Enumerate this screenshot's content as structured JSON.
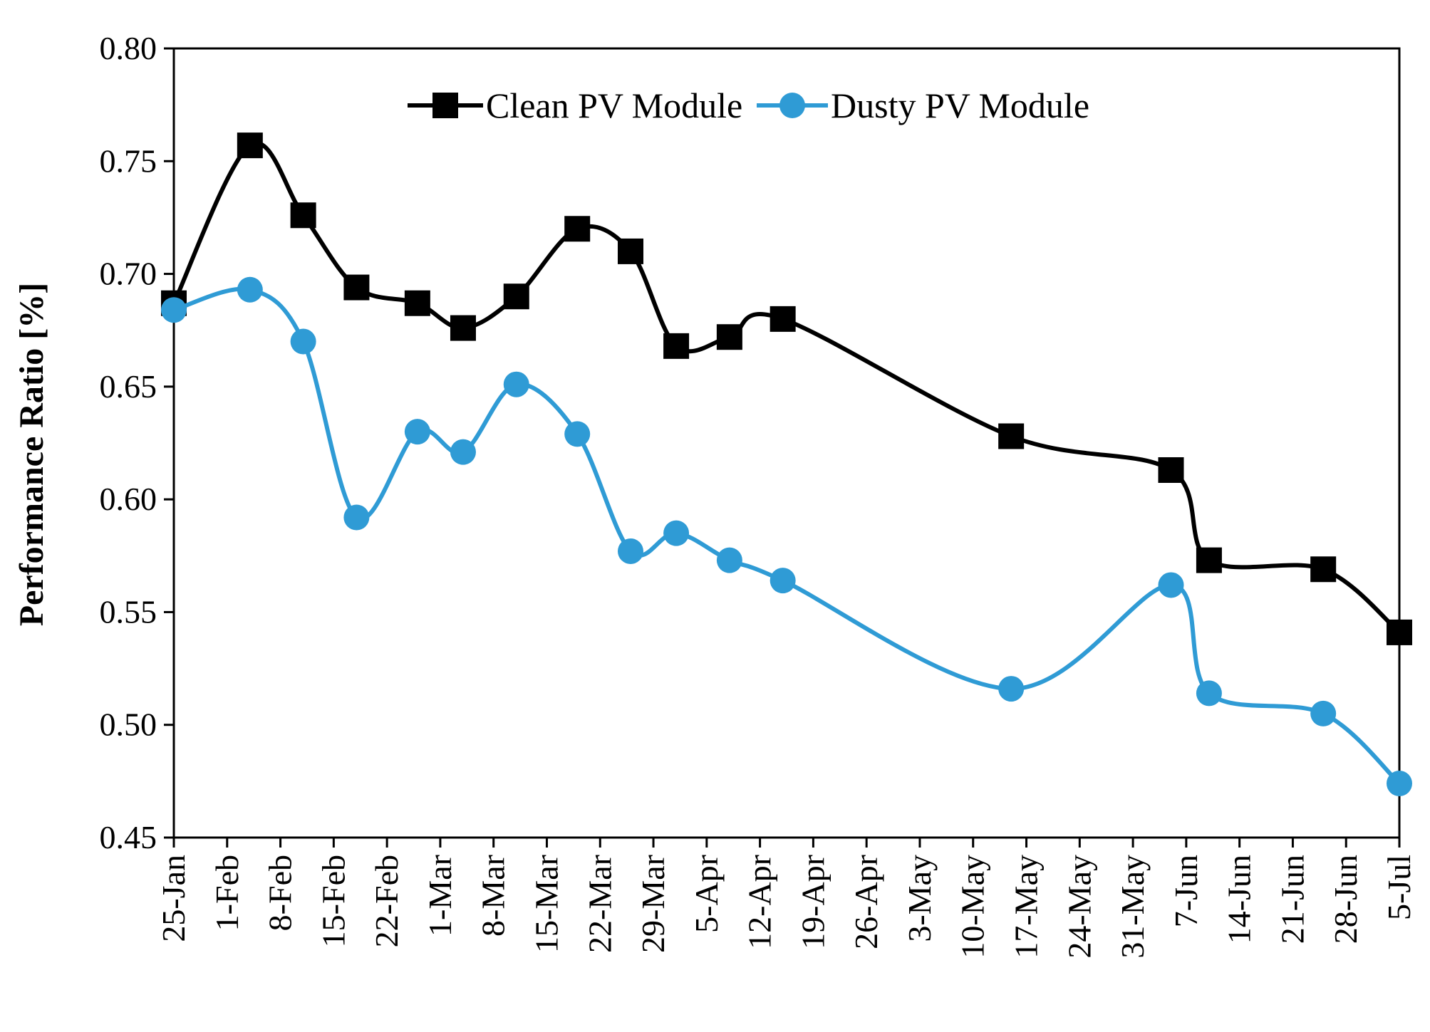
{
  "chart_data": {
    "type": "line",
    "title": "",
    "xlabel": "",
    "ylabel": "Performance Ratio [%]",
    "ylim": [
      0.45,
      0.8
    ],
    "yticks": [
      0.45,
      0.5,
      0.55,
      0.6,
      0.65,
      0.7,
      0.75,
      0.8
    ],
    "ytick_labels": [
      "0.45",
      "0.50",
      "0.55",
      "0.60",
      "0.65",
      "0.70",
      "0.75",
      "0.80"
    ],
    "xlim_days": [
      0,
      161
    ],
    "xticks_days": [
      0,
      7,
      14,
      21,
      28,
      35,
      42,
      49,
      56,
      63,
      70,
      77,
      84,
      91,
      98,
      105,
      112,
      119,
      126,
      133,
      140,
      147,
      154,
      161
    ],
    "xtick_labels": [
      "25-Jan",
      "1-Feb",
      "8-Feb",
      "15-Feb",
      "22-Feb",
      "1-Mar",
      "8-Mar",
      "15-Mar",
      "22-Mar",
      "29-Mar",
      "5-Apr",
      "12-Apr",
      "19-Apr",
      "26-Apr",
      "3-May",
      "10-May",
      "17-May",
      "24-May",
      "31-May",
      "7-Jun",
      "14-Jun",
      "21-Jun",
      "28-Jun",
      "5-Jul"
    ],
    "legend_position": "top-center",
    "series": [
      {
        "name": "Clean PV Module",
        "color": "#000000",
        "marker": "square",
        "x_days": [
          0,
          10,
          17,
          24,
          32,
          38,
          45,
          53,
          60,
          66,
          73,
          80,
          110,
          131,
          136,
          151,
          161
        ],
        "values": [
          0.687,
          0.757,
          0.726,
          0.694,
          0.687,
          0.676,
          0.69,
          0.72,
          0.71,
          0.668,
          0.672,
          0.68,
          0.628,
          0.613,
          0.573,
          0.569,
          0.541
        ]
      },
      {
        "name": "Dusty PV Module",
        "color": "#2f9bd5",
        "marker": "circle",
        "x_days": [
          0,
          10,
          17,
          24,
          32,
          38,
          45,
          53,
          60,
          66,
          73,
          80,
          110,
          131,
          136,
          151,
          161
        ],
        "values": [
          0.684,
          0.693,
          0.67,
          0.592,
          0.63,
          0.621,
          0.651,
          0.629,
          0.577,
          0.585,
          0.573,
          0.564,
          0.516,
          0.562,
          0.514,
          0.505,
          0.474
        ]
      }
    ]
  }
}
